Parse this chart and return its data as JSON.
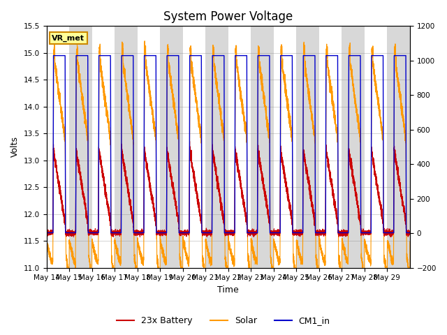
{
  "title": "System Power Voltage",
  "xlabel": "Time",
  "ylabel": "Volts",
  "annotation": "VR_met",
  "ylim_left": [
    11.0,
    15.5
  ],
  "ylim_right": [
    -200,
    1200
  ],
  "yticks_left": [
    11.0,
    11.5,
    12.0,
    12.5,
    13.0,
    13.5,
    14.0,
    14.5,
    15.0,
    15.5
  ],
  "yticks_right": [
    -200,
    0,
    200,
    400,
    600,
    800,
    1000,
    1200
  ],
  "xtick_labels": [
    "May 14",
    "May 15",
    "May 16",
    "May 17",
    "May 18",
    "May 19",
    "May 20",
    "May 21",
    "May 22",
    "May 23",
    "May 24",
    "May 25",
    "May 26",
    "May 27",
    "May 28",
    "May 29"
  ],
  "colors": {
    "battery": "#cc0000",
    "solar": "#ff9900",
    "cm1": "#0000cc",
    "band_gray": "#d8d8d8",
    "band_white": "#ffffff",
    "annotation_bg": "#ffff99",
    "annotation_border": "#cc8800"
  },
  "num_days": 16,
  "title_fontsize": 12,
  "label_fontsize": 9,
  "tick_fontsize": 7.5,
  "legend_fontsize": 9
}
